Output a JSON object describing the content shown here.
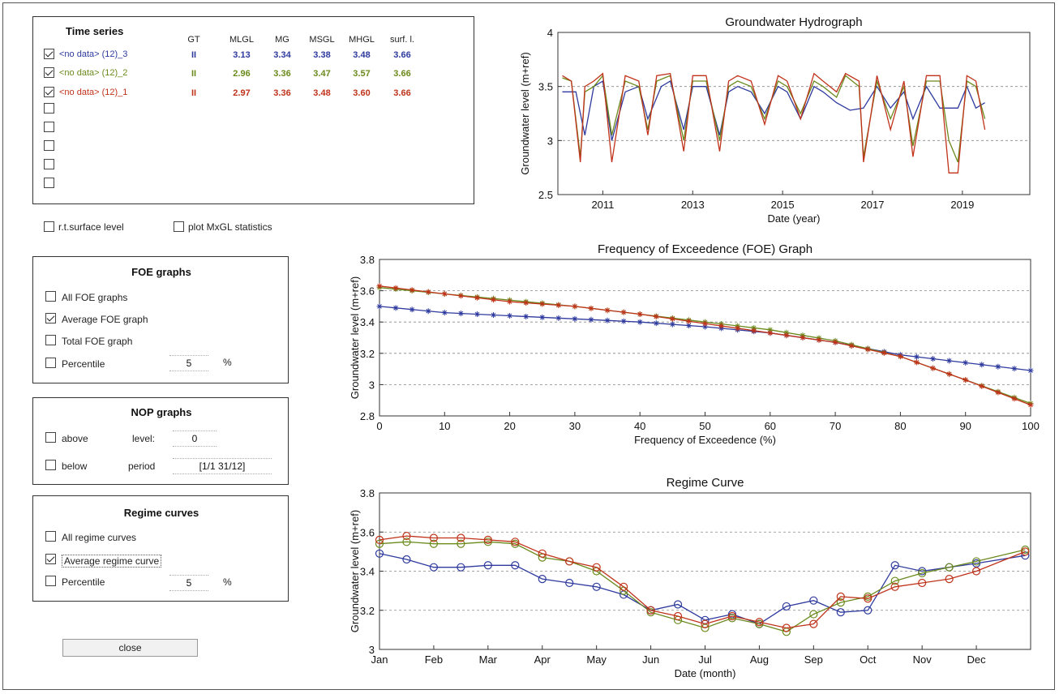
{
  "colors": {
    "s3": "#2e3a9e",
    "s2": "#6b8a1c",
    "s1": "#c0321a"
  },
  "series_panel": {
    "title": "Time series",
    "headers": [
      "GT",
      "MLGL",
      "MG",
      "MSGL",
      "MHGL",
      "surf. l."
    ],
    "rows": [
      {
        "name": "<no data> (12)_3",
        "checked": true,
        "gt": "II",
        "mlgl": "3.13",
        "mg": "3.34",
        "msgl": "3.38",
        "mhgl": "3.48",
        "surf": "3.66"
      },
      {
        "name": "<no data> (12)_2",
        "checked": true,
        "gt": "II",
        "mlgl": "2.96",
        "mg": "3.36",
        "msgl": "3.47",
        "mhgl": "3.57",
        "surf": "3.66"
      },
      {
        "name": "<no data> (12)_1",
        "checked": true,
        "gt": "II",
        "mlgl": "2.97",
        "mg": "3.36",
        "msgl": "3.48",
        "mhgl": "3.60",
        "surf": "3.66"
      }
    ]
  },
  "options": {
    "rt_surface": "r.t.surface level",
    "plot_mxgl": "plot MxGL statistics"
  },
  "foe": {
    "title": "FOE graphs",
    "all": "All FOE graphs",
    "average": "Average FOE graph",
    "total": "Total FOE graph",
    "percentile": "Percentile",
    "percentile_value": "5",
    "unit": "%"
  },
  "nop": {
    "title": "NOP graphs",
    "above": "above",
    "below": "below",
    "level_label": "level:",
    "level_value": "0",
    "period_label": "period",
    "period_value": "[1/1 31/12]"
  },
  "regime": {
    "title": "Regime curves",
    "all": "All regime curves",
    "average": "Average regime curve",
    "percentile": "Percentile",
    "percentile_value": "5",
    "unit": "%"
  },
  "close_label": "close",
  "chart_data": [
    {
      "type": "line",
      "title": "Groundwater Hydrograph",
      "xlabel": "Date (year)",
      "ylabel": "Groundwater level (m+ref)",
      "xlim": [
        2010.0,
        2020.5
      ],
      "ylim": [
        2.5,
        4.0
      ],
      "xticks": [
        2011,
        2013,
        2015,
        2017,
        2019
      ],
      "yticks": [
        "2.5",
        "3",
        "3.5",
        "4"
      ],
      "grid": true,
      "series": [
        {
          "color_key": "s3",
          "x": [
            2010.1,
            2010.4,
            2010.6,
            2010.8,
            2011.0,
            2011.2,
            2011.5,
            2011.8,
            2012.0,
            2012.3,
            2012.5,
            2012.8,
            2013.0,
            2013.3,
            2013.6,
            2013.8,
            2014.0,
            2014.3,
            2014.6,
            2014.9,
            2015.1,
            2015.4,
            2015.7,
            2015.9,
            2016.2,
            2016.5,
            2016.8,
            2017.1,
            2017.4,
            2017.7,
            2017.9,
            2018.2,
            2018.5,
            2018.9,
            2019.1,
            2019.3,
            2019.5
          ],
          "y": [
            3.45,
            3.45,
            3.05,
            3.5,
            3.55,
            3.0,
            3.45,
            3.5,
            3.2,
            3.5,
            3.55,
            3.1,
            3.5,
            3.5,
            3.05,
            3.45,
            3.5,
            3.45,
            3.25,
            3.5,
            3.45,
            3.2,
            3.5,
            3.45,
            3.35,
            3.28,
            3.3,
            3.5,
            3.3,
            3.45,
            3.2,
            3.5,
            3.3,
            3.3,
            3.5,
            3.3,
            3.35
          ]
        },
        {
          "color_key": "s2",
          "x": [
            2010.1,
            2010.3,
            2010.5,
            2010.6,
            2010.8,
            2011.0,
            2011.2,
            2011.5,
            2011.8,
            2012.0,
            2012.2,
            2012.5,
            2012.8,
            2013.0,
            2013.3,
            2013.6,
            2013.8,
            2014.0,
            2014.3,
            2014.6,
            2014.9,
            2015.1,
            2015.4,
            2015.7,
            2015.9,
            2016.2,
            2016.4,
            2016.7,
            2016.8,
            2017.1,
            2017.4,
            2017.7,
            2017.9,
            2018.2,
            2018.5,
            2018.7,
            2018.9,
            2019.1,
            2019.3,
            2019.5
          ],
          "y": [
            3.58,
            3.55,
            2.85,
            3.45,
            3.5,
            3.6,
            3.05,
            3.55,
            3.5,
            3.1,
            3.55,
            3.6,
            3.0,
            3.55,
            3.55,
            3.0,
            3.5,
            3.55,
            3.5,
            3.2,
            3.55,
            3.5,
            3.25,
            3.55,
            3.5,
            3.4,
            3.6,
            3.5,
            2.85,
            3.55,
            3.2,
            3.5,
            2.95,
            3.55,
            3.55,
            3.0,
            2.8,
            3.55,
            3.5,
            3.2
          ]
        },
        {
          "color_key": "s1",
          "x": [
            2010.1,
            2010.3,
            2010.5,
            2010.6,
            2010.8,
            2011.0,
            2011.2,
            2011.5,
            2011.8,
            2012.0,
            2012.2,
            2012.5,
            2012.8,
            2013.0,
            2013.3,
            2013.6,
            2013.8,
            2014.0,
            2014.3,
            2014.6,
            2014.9,
            2015.1,
            2015.4,
            2015.7,
            2015.9,
            2016.2,
            2016.4,
            2016.7,
            2016.8,
            2017.1,
            2017.4,
            2017.7,
            2017.9,
            2018.2,
            2018.5,
            2018.7,
            2018.9,
            2019.1,
            2019.3,
            2019.5
          ],
          "y": [
            3.6,
            3.55,
            2.8,
            3.5,
            3.55,
            3.62,
            2.8,
            3.6,
            3.55,
            3.05,
            3.6,
            3.62,
            2.9,
            3.6,
            3.6,
            2.9,
            3.55,
            3.6,
            3.55,
            3.15,
            3.6,
            3.55,
            3.2,
            3.62,
            3.55,
            3.45,
            3.62,
            3.55,
            2.8,
            3.6,
            3.1,
            3.55,
            2.85,
            3.6,
            3.6,
            2.7,
            2.7,
            3.6,
            3.55,
            3.1
          ]
        }
      ]
    },
    {
      "type": "line",
      "title": "Frequency of Exceedence (FOE) Graph",
      "xlabel": "Frequency of Exceedence (%)",
      "ylabel": "Groundwater level (m+ref)",
      "xlim": [
        0,
        100
      ],
      "ylim": [
        2.8,
        3.8
      ],
      "xticks": [
        "0",
        "10",
        "20",
        "30",
        "40",
        "50",
        "60",
        "70",
        "80",
        "90",
        "100"
      ],
      "yticks": [
        "2.8",
        "3",
        "3.2",
        "3.4",
        "3.6",
        "3.8"
      ],
      "grid": true,
      "series": [
        {
          "color_key": "s3",
          "x": [
            0,
            10,
            20,
            30,
            40,
            50,
            60,
            70,
            80,
            90,
            100
          ],
          "y": [
            3.5,
            3.46,
            3.44,
            3.42,
            3.4,
            3.37,
            3.33,
            3.27,
            3.19,
            3.14,
            3.09
          ]
        },
        {
          "color_key": "s2",
          "x": [
            0,
            10,
            20,
            30,
            40,
            50,
            60,
            70,
            80,
            90,
            100
          ],
          "y": [
            3.62,
            3.58,
            3.54,
            3.5,
            3.45,
            3.4,
            3.35,
            3.28,
            3.18,
            3.03,
            2.88
          ]
        },
        {
          "color_key": "s1",
          "x": [
            0,
            10,
            20,
            30,
            40,
            50,
            60,
            70,
            80,
            90,
            100
          ],
          "y": [
            3.63,
            3.58,
            3.53,
            3.5,
            3.45,
            3.39,
            3.33,
            3.27,
            3.18,
            3.03,
            2.87
          ]
        }
      ]
    },
    {
      "type": "line",
      "title": "Regime Curve",
      "xlabel": "Date (month)",
      "ylabel": "Groundwater level (m+ref)",
      "xlim": [
        1,
        13
      ],
      "ylim": [
        3.0,
        3.8
      ],
      "xticks": [
        "Jan",
        "Feb",
        "Mar",
        "Apr",
        "May",
        "Jun",
        "Jul",
        "Aug",
        "Sep",
        "Oct",
        "Nov",
        "Dec"
      ],
      "yticks": [
        "3",
        "3.2",
        "3.4",
        "3.6",
        "3.8"
      ],
      "grid": true,
      "series": [
        {
          "color_key": "s3",
          "x": [
            1,
            1.5,
            2,
            2.5,
            3,
            3.5,
            4,
            4.5,
            5,
            5.5,
            6,
            6.5,
            7,
            7.5,
            8,
            8.5,
            9,
            9.5,
            10,
            10.5,
            11,
            11.5,
            12,
            12.9
          ],
          "y": [
            3.49,
            3.46,
            3.42,
            3.42,
            3.43,
            3.43,
            3.36,
            3.34,
            3.32,
            3.28,
            3.2,
            3.23,
            3.15,
            3.18,
            3.13,
            3.22,
            3.25,
            3.19,
            3.2,
            3.43,
            3.4,
            3.42,
            3.44,
            3.48
          ]
        },
        {
          "color_key": "s2",
          "x": [
            1,
            1.5,
            2,
            2.5,
            3,
            3.5,
            4,
            4.5,
            5,
            5.5,
            6,
            6.5,
            7,
            7.5,
            8,
            8.5,
            9,
            9.5,
            10,
            10.5,
            11,
            11.5,
            12,
            12.9
          ],
          "y": [
            3.54,
            3.55,
            3.54,
            3.54,
            3.55,
            3.54,
            3.47,
            3.45,
            3.4,
            3.3,
            3.19,
            3.15,
            3.11,
            3.16,
            3.13,
            3.09,
            3.18,
            3.24,
            3.27,
            3.35,
            3.39,
            3.42,
            3.45,
            3.51
          ]
        },
        {
          "color_key": "s1",
          "x": [
            1,
            1.5,
            2,
            2.5,
            3,
            3.5,
            4,
            4.5,
            5,
            5.5,
            6,
            6.5,
            7,
            7.5,
            8,
            8.5,
            9,
            9.5,
            10,
            10.5,
            11,
            11.5,
            12,
            12.9
          ],
          "y": [
            3.56,
            3.58,
            3.57,
            3.57,
            3.56,
            3.55,
            3.49,
            3.45,
            3.42,
            3.32,
            3.2,
            3.17,
            3.13,
            3.17,
            3.14,
            3.11,
            3.13,
            3.27,
            3.26,
            3.32,
            3.34,
            3.36,
            3.4,
            3.5
          ]
        }
      ]
    }
  ]
}
